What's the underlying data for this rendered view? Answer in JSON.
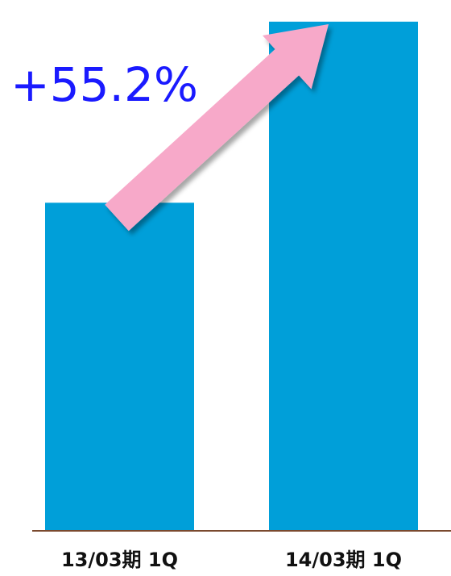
{
  "chart_data": {
    "type": "bar",
    "categories": [
      "13/03期 1Q",
      "14/03期 1Q"
    ],
    "values": [
      100,
      155.2
    ],
    "color": "#009fd9",
    "ylim": [
      0,
      161.8
    ],
    "annotation": "+55.2%"
  }
}
